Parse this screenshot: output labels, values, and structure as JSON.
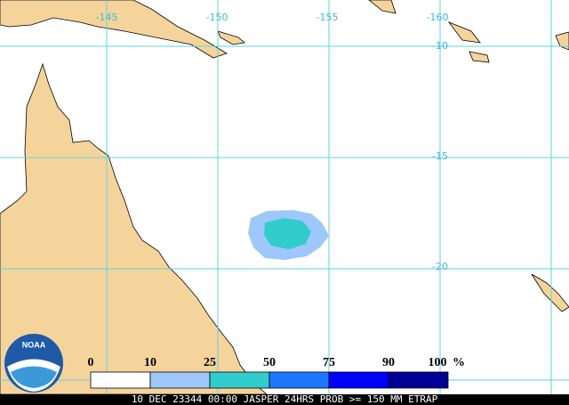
{
  "map": {
    "longitude_labels": [
      "-145",
      "-150",
      "-155",
      "-160"
    ],
    "latitude_labels": [
      "-10",
      "-15",
      "-20"
    ],
    "logo": "NOAA",
    "legend": {
      "labels": [
        "0",
        "10",
        "25",
        "50",
        "75",
        "90",
        "100"
      ],
      "unit": "%",
      "colors": [
        "#ffffff",
        "#9ec8fa",
        "#33cccc",
        "#1e78ff",
        "#0000ff",
        "#000096"
      ]
    },
    "caption": "10 DEC 23344 00:00 JASPER 24HRS PROB >= 150 MM ETRAP"
  }
}
